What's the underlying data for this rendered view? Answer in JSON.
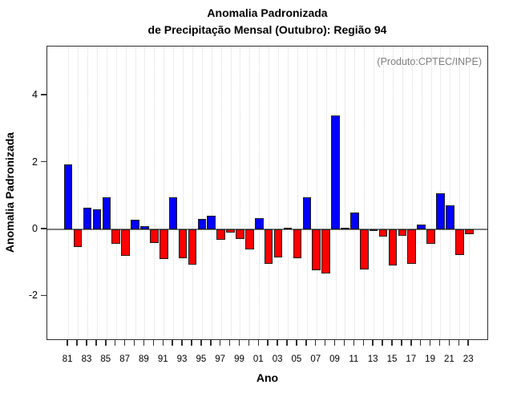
{
  "chart_data": {
    "type": "bar",
    "title_line1": "Anomalia Padronizada",
    "title_line2": "de Precipitação Mensal (Outubro): Região 94",
    "annotation": "(Produto:CPTEC/INPE)",
    "xlabel": "Ano",
    "ylabel": "Anomalia Padronizada",
    "legend": "none",
    "grid": "vertical-dotted-per-year",
    "ylim": [
      -3.3,
      5.45
    ],
    "y_ticks": [
      4,
      2,
      0,
      -2
    ],
    "y_tick_labels": [
      "4",
      "2",
      "0",
      "-2"
    ],
    "x_tick_labels_visible": [
      "81",
      "83",
      "85",
      "87",
      "89",
      "91",
      "93",
      "95",
      "97",
      "99",
      "01",
      "03",
      "05",
      "07",
      "09",
      "11",
      "13",
      "15",
      "17",
      "19",
      "21",
      "23"
    ],
    "categories": [
      "81",
      "82",
      "83",
      "84",
      "85",
      "86",
      "87",
      "88",
      "89",
      "90",
      "91",
      "92",
      "93",
      "94",
      "95",
      "96",
      "97",
      "98",
      "99",
      "00",
      "01",
      "02",
      "03",
      "04",
      "05",
      "06",
      "07",
      "08",
      "09",
      "10",
      "11",
      "12",
      "13",
      "14",
      "15",
      "16",
      "17",
      "18",
      "19",
      "20",
      "21",
      "22",
      "23"
    ],
    "values": [
      1.95,
      -0.52,
      0.64,
      0.59,
      0.97,
      -0.42,
      -0.78,
      0.28,
      0.09,
      -0.4,
      -0.88,
      0.97,
      -0.86,
      -1.06,
      0.3,
      0.41,
      -0.3,
      -0.1,
      -0.28,
      -0.6,
      0.34,
      -1.03,
      -0.83,
      0.05,
      -0.87,
      0.97,
      -1.22,
      -1.33,
      3.4,
      0.05,
      0.51,
      -1.2,
      -0.04,
      -0.22,
      -1.08,
      -0.2,
      -1.04,
      0.14,
      -0.43,
      1.08,
      0.71,
      -0.77,
      -0.14
    ],
    "colors": {
      "positive_bar": "#0000ff",
      "negative_bar": "#ff0000",
      "bar_border": "#1c1c1c",
      "zero_line": "#7d7d7d",
      "gridline": "#d9d9d9",
      "axis_box": "#2f2f2f",
      "annotation_text": "#7f7f7f",
      "text": "#000000"
    }
  }
}
